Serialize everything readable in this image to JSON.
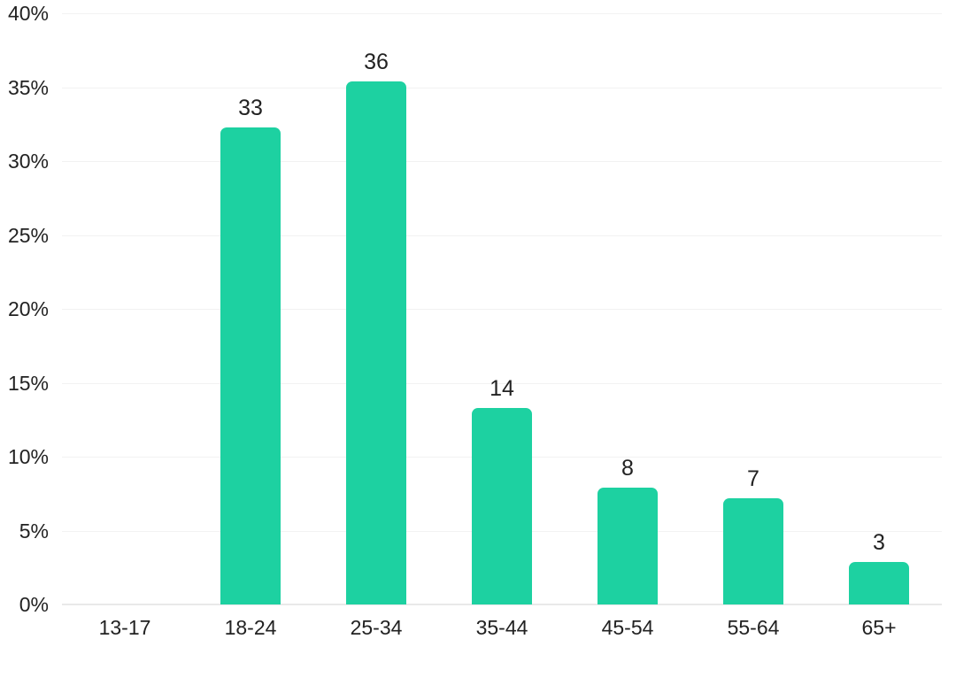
{
  "chart_data": {
    "type": "bar",
    "title": "",
    "xlabel": "",
    "ylabel": "",
    "categories": [
      "13-17",
      "18-24",
      "25-34",
      "35-44",
      "45-54",
      "55-64",
      "65+"
    ],
    "values": [
      0,
      33,
      36,
      14,
      8,
      7,
      3
    ],
    "data_labels": [
      "",
      "33",
      "36",
      "14",
      "8",
      "7",
      "3"
    ],
    "bar_heights_pct": [
      0,
      32.3,
      35.4,
      13.3,
      7.9,
      7.2,
      2.9
    ],
    "ylim": [
      0,
      40
    ],
    "ytick_step": 5,
    "ytick_labels": [
      "0%",
      "5%",
      "10%",
      "15%",
      "20%",
      "25%",
      "30%",
      "35%",
      "40%"
    ],
    "grid": true,
    "legend": false,
    "colors": {
      "bar": "#1dd1a1",
      "grid": "#f2f2f2",
      "axis_line": "#e9e9e9",
      "text": "#222222",
      "background": "#ffffff"
    }
  }
}
